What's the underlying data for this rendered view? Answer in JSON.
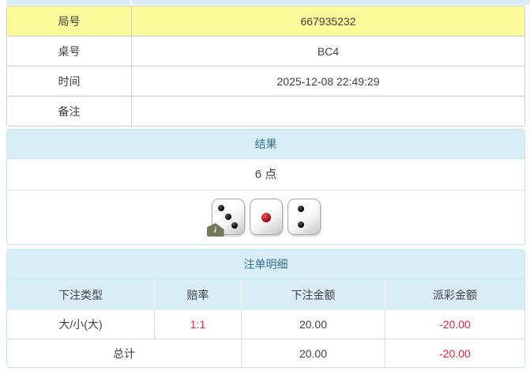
{
  "colors": {
    "highlight_yellow": "#fafa9b",
    "panel_header_bg": "#d9edf7",
    "panel_header_text": "#31708f",
    "panel_border": "#bce8f1",
    "negative_red": "#ee1c38"
  },
  "info_table": {
    "rows": [
      {
        "label": "局号",
        "value": "667935232"
      },
      {
        "label": "桌号",
        "value": "BC4"
      },
      {
        "label": "时间",
        "value": "2025-12-08 22:49:29"
      },
      {
        "label": "备注",
        "value": ""
      }
    ]
  },
  "result_panel": {
    "title": "结果",
    "points": "6 点",
    "dice": [
      3,
      1,
      2
    ],
    "info_badge": "i"
  },
  "bets_panel": {
    "title": "注单明细",
    "columns": [
      "下注类型",
      "赔率",
      "下注金额",
      "派彩金额"
    ],
    "rows": [
      {
        "type": "大/小(大)",
        "odds": "1:1",
        "amount": "20.00",
        "payout": "-20.00"
      }
    ],
    "total": {
      "label": "总计",
      "amount": "20.00",
      "payout": "-20.00"
    }
  }
}
